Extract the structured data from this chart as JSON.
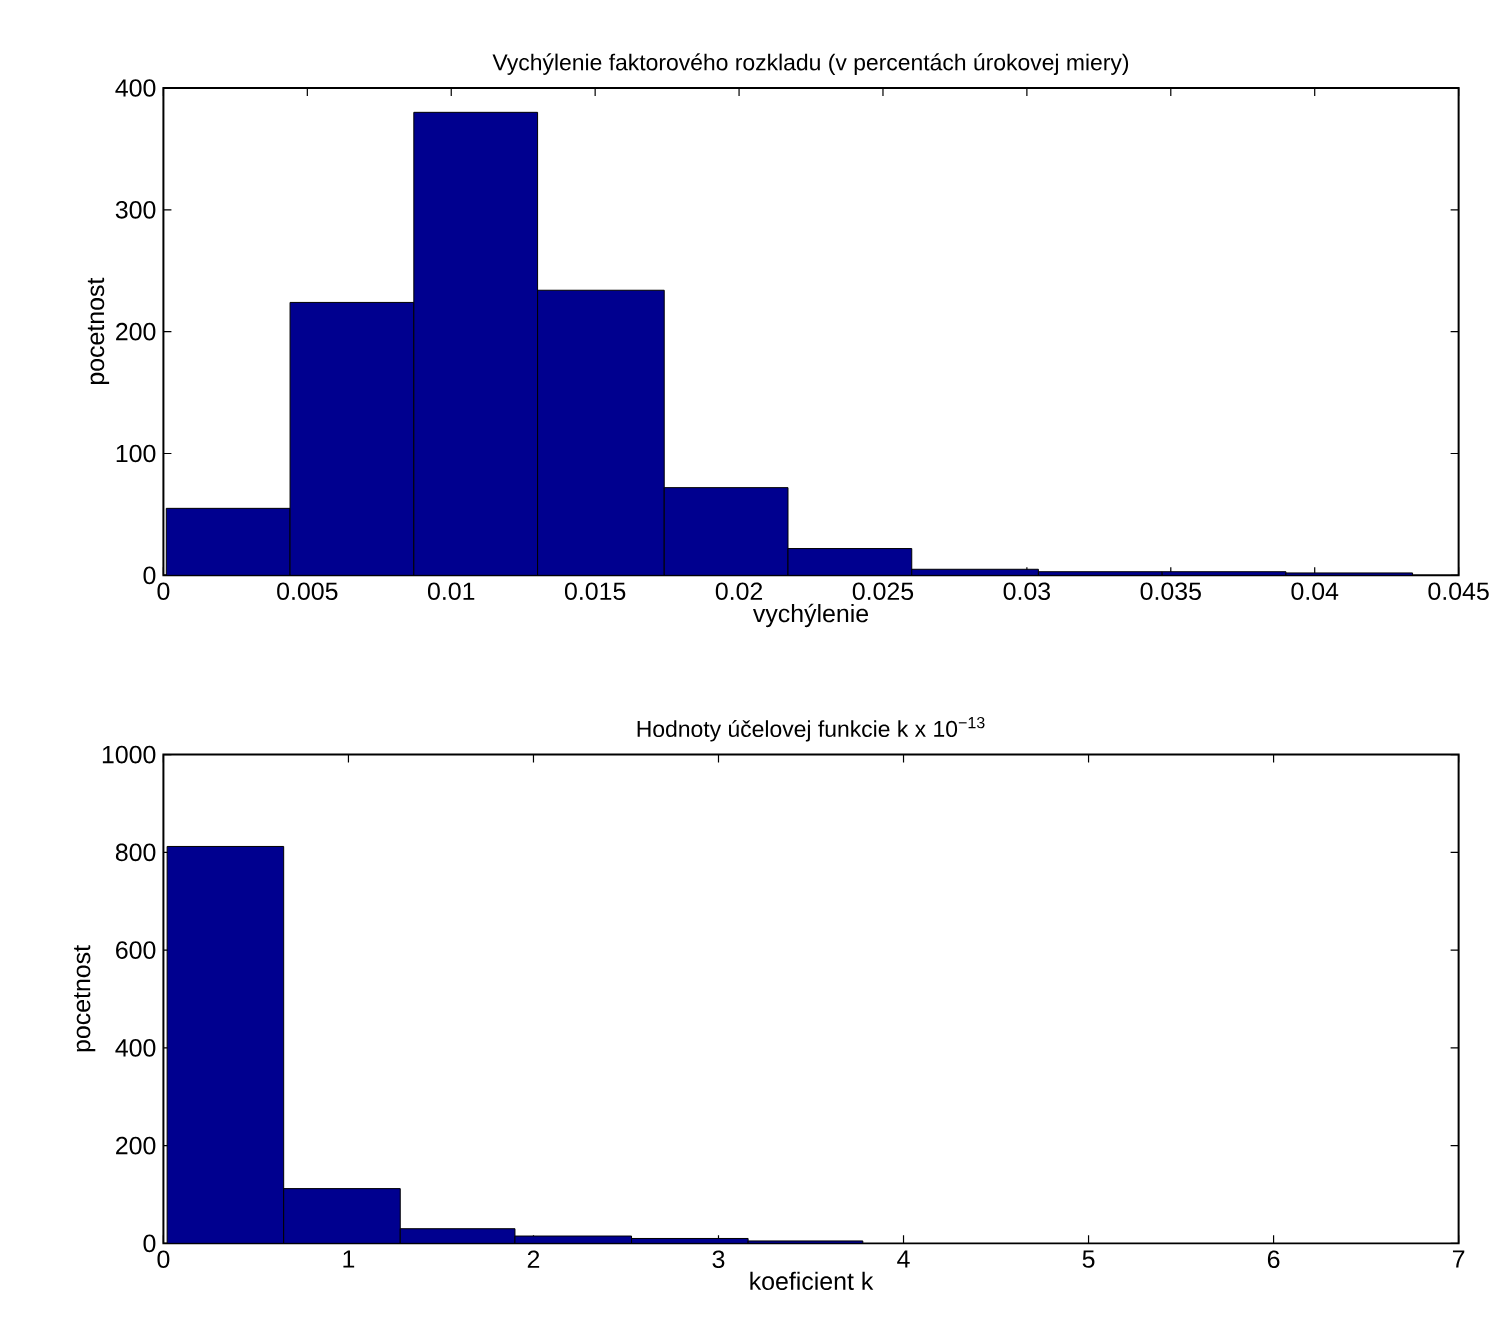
{
  "chart_data": [
    {
      "type": "histogram",
      "title": "Vychýlenie faktorového rozkladu (v percentách úrokovej miery)",
      "xlabel": "vychýlenie",
      "ylabel": "pocetnost",
      "bins": [
        0.0001,
        0.0044,
        0.0087,
        0.013,
        0.0174,
        0.0217,
        0.026,
        0.0304,
        0.0347,
        0.039,
        0.0434
      ],
      "values": [
        55,
        224,
        380,
        234,
        72,
        22,
        5,
        3,
        3,
        2
      ],
      "color": "#00008f",
      "xlim": [
        0,
        0.045
      ],
      "ylim": [
        0,
        400
      ],
      "xticks": [
        0,
        0.005,
        0.01,
        0.015,
        0.02,
        0.025,
        0.03,
        0.035,
        0.04,
        0.045
      ],
      "yticks": [
        0,
        100,
        200,
        300,
        400
      ]
    },
    {
      "type": "histogram",
      "title": "Hodnoty účelovej funkcie k x 10$^{−13}$",
      "xlabel": "koeficient k",
      "ylabel": "pocetnost",
      "bins": [
        0.02,
        0.65,
        1.28,
        1.9,
        2.53,
        3.16,
        3.78
      ],
      "values": [
        812,
        112,
        30,
        15,
        10,
        5
      ],
      "color": "#00008f",
      "xlim": [
        0,
        7
      ],
      "ylim": [
        0,
        1000
      ],
      "xticks": [
        0,
        1,
        2,
        3,
        4,
        5,
        6,
        7
      ],
      "yticks": [
        0,
        200,
        400,
        600,
        800,
        1000
      ]
    }
  ]
}
